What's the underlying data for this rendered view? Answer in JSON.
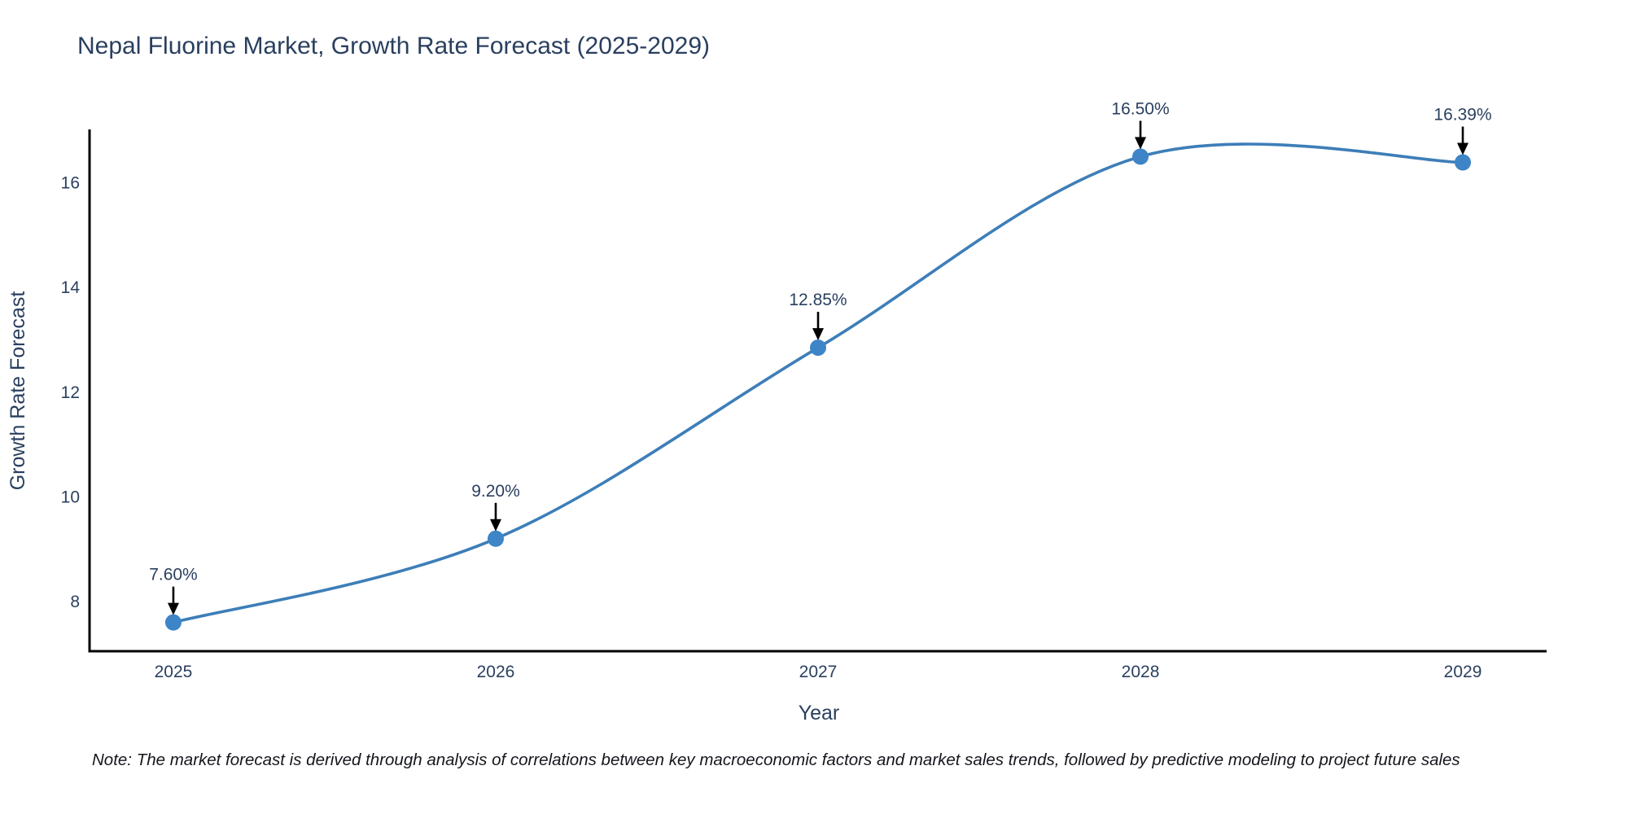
{
  "title": "Nepal Fluorine Market, Growth Rate Forecast (2025-2029)",
  "note": "Note: The market forecast is derived through analysis of correlations between key macroeconomic factors and market sales trends, followed by predictive modeling to project future sales",
  "colors": {
    "background": "#ffffff",
    "title_text": "#2a3f5f",
    "tick_text": "#2a3f5f",
    "axis_line": "#000000",
    "series_line": "#3d7eb8",
    "marker_fill": "#3d85c6",
    "annotation_text": "#2a3f5f",
    "arrow": "#000000",
    "note_text": "#14161c"
  },
  "chart_data": {
    "type": "line",
    "line_shape": "spline",
    "markers": true,
    "grid": false,
    "legend": null,
    "title": "Nepal Fluorine Market, Growth Rate Forecast (2025-2029)",
    "xlabel": "Year",
    "ylabel": "Growth Rate Forecast",
    "x": [
      2025,
      2026,
      2027,
      2028,
      2029
    ],
    "x_ticks": [
      "2025",
      "2026",
      "2027",
      "2028",
      "2029"
    ],
    "values": [
      7.6,
      9.2,
      12.85,
      16.5,
      16.39
    ],
    "labels": [
      "7.60%",
      "9.20%",
      "12.85%",
      "16.50%",
      "16.39%"
    ],
    "y_ticks": [
      8,
      10,
      12,
      14,
      16
    ],
    "ylim": [
      7.05,
      17.02
    ],
    "xlim": [
      2024.74,
      2029.26
    ]
  }
}
